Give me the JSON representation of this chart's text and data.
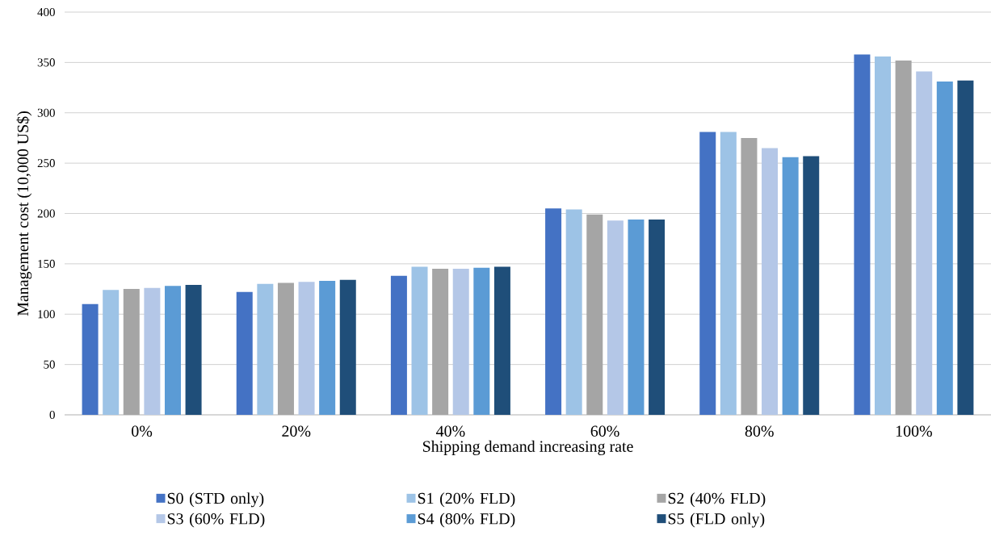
{
  "chart_data": {
    "type": "bar",
    "xlabel": "Shipping demand increasing rate",
    "ylabel": "Management cost (10,000 US$)",
    "categories": [
      "0%",
      "20%",
      "40%",
      "60%",
      "80%",
      "100%"
    ],
    "series": [
      {
        "name": "S0 (STD only)",
        "color": "#4472c4",
        "values": [
          110,
          122,
          138,
          205,
          281,
          358
        ]
      },
      {
        "name": "S1 (20% FLD)",
        "color": "#9dc3e6",
        "values": [
          124,
          130,
          147,
          204,
          281,
          356
        ]
      },
      {
        "name": "S2 (40% FLD)",
        "color": "#a5a5a5",
        "values": [
          125,
          131,
          145,
          199,
          275,
          352
        ]
      },
      {
        "name": "S3 (60% FLD)",
        "color": "#b4c7e7",
        "values": [
          126,
          132,
          145,
          193,
          265,
          341
        ]
      },
      {
        "name": "S4 (80% FLD)",
        "color": "#5b9bd5",
        "values": [
          128,
          133,
          146,
          194,
          256,
          331
        ]
      },
      {
        "name": "S5 (FLD only)",
        "color": "#1f4e79",
        "values": [
          129,
          134,
          147,
          194,
          257,
          332
        ]
      }
    ],
    "ylim": [
      0,
      400
    ],
    "yticks": [
      0,
      50,
      100,
      150,
      200,
      250,
      300,
      350,
      400
    ],
    "grid": "y",
    "legend": "bottom"
  }
}
